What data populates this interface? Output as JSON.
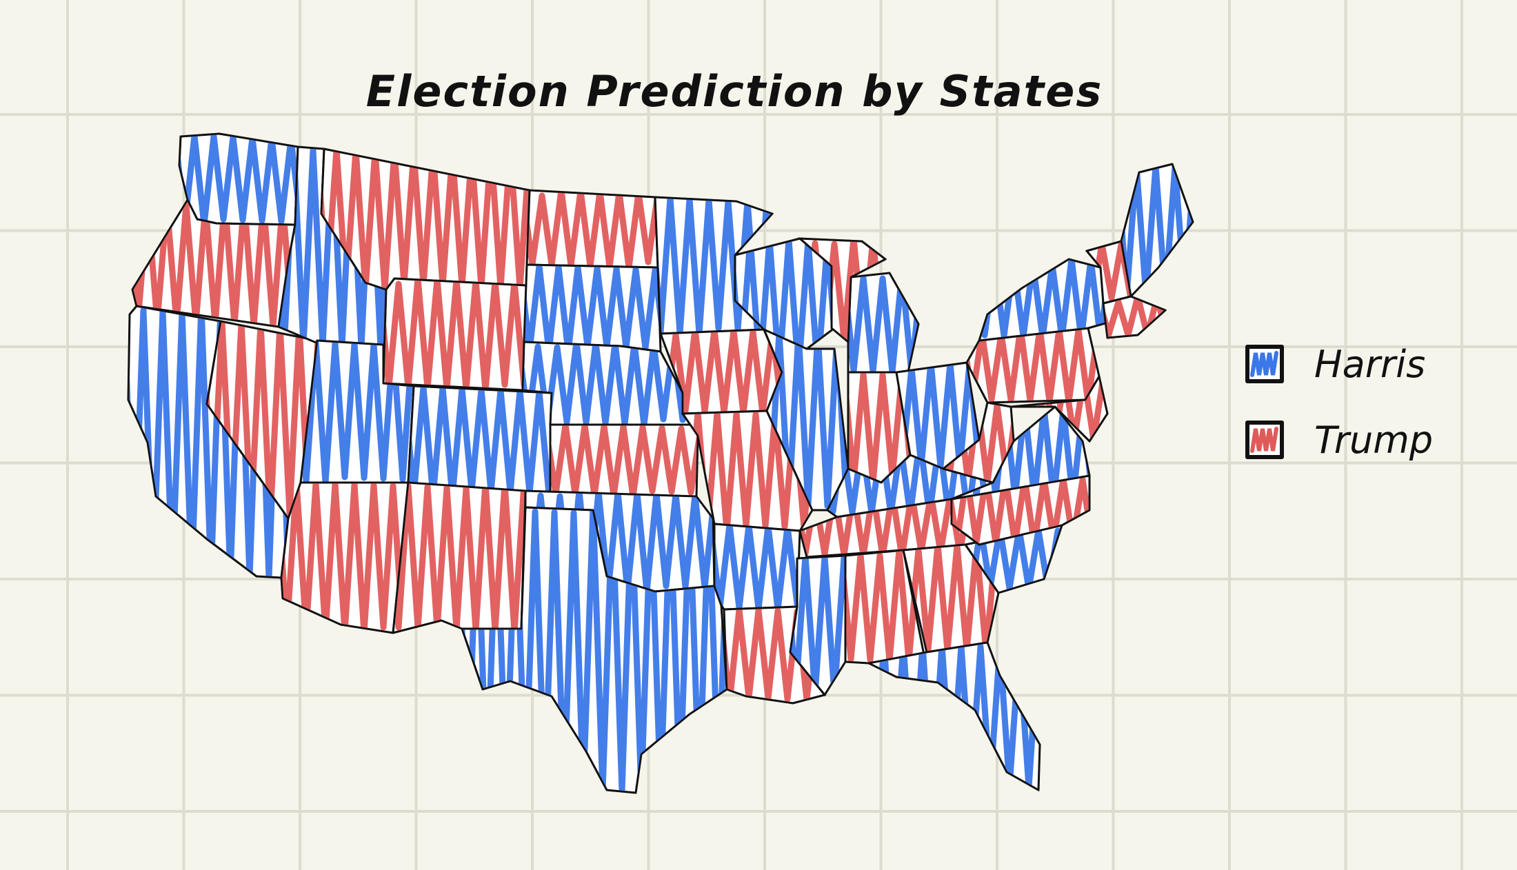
{
  "title": "Election Prediction by States",
  "legend": [
    {
      "label": "Harris",
      "color": "#3a77e8"
    },
    {
      "label": "Trump",
      "color": "#e05a5a"
    }
  ],
  "states": [
    {
      "name": "Washington",
      "winner": "Harris"
    },
    {
      "name": "Oregon",
      "winner": "Trump"
    },
    {
      "name": "California",
      "winner": "Harris"
    },
    {
      "name": "Nevada",
      "winner": "Trump"
    },
    {
      "name": "Idaho",
      "winner": "Harris"
    },
    {
      "name": "Montana",
      "winner": "Trump"
    },
    {
      "name": "Wyoming",
      "winner": "Trump"
    },
    {
      "name": "Utah",
      "winner": "Harris"
    },
    {
      "name": "Arizona",
      "winner": "Trump"
    },
    {
      "name": "Colorado",
      "winner": "Harris"
    },
    {
      "name": "New Mexico",
      "winner": "Trump"
    },
    {
      "name": "North Dakota",
      "winner": "Trump"
    },
    {
      "name": "South Dakota",
      "winner": "Harris"
    },
    {
      "name": "Nebraska",
      "winner": "Harris"
    },
    {
      "name": "Kansas",
      "winner": "Trump"
    },
    {
      "name": "Oklahoma",
      "winner": "Harris"
    },
    {
      "name": "Texas",
      "winner": "Harris"
    },
    {
      "name": "Minnesota",
      "winner": "Harris"
    },
    {
      "name": "Iowa",
      "winner": "Trump"
    },
    {
      "name": "Missouri",
      "winner": "Trump"
    },
    {
      "name": "Arkansas",
      "winner": "Harris"
    },
    {
      "name": "Louisiana",
      "winner": "Trump"
    },
    {
      "name": "Wisconsin",
      "winner": "Harris"
    },
    {
      "name": "Illinois",
      "winner": "Harris"
    },
    {
      "name": "Michigan",
      "winner": "Harris"
    },
    {
      "name": "Michigan Upper Peninsula",
      "winner": "Trump"
    },
    {
      "name": "Indiana",
      "winner": "Trump"
    },
    {
      "name": "Ohio",
      "winner": "Harris"
    },
    {
      "name": "Kentucky",
      "winner": "Harris"
    },
    {
      "name": "Tennessee",
      "winner": "Trump"
    },
    {
      "name": "Mississippi",
      "winner": "Harris"
    },
    {
      "name": "Alabama",
      "winner": "Trump"
    },
    {
      "name": "Georgia",
      "winner": "Trump"
    },
    {
      "name": "Florida",
      "winner": "Harris"
    },
    {
      "name": "South Carolina",
      "winner": "Harris"
    },
    {
      "name": "North Carolina",
      "winner": "Trump"
    },
    {
      "name": "Virginia",
      "winner": "Harris"
    },
    {
      "name": "West Virginia",
      "winner": "Trump"
    },
    {
      "name": "Pennsylvania",
      "winner": "Trump"
    },
    {
      "name": "New York",
      "winner": "Harris"
    },
    {
      "name": "Maine",
      "winner": "Harris"
    },
    {
      "name": "Vermont / New Hampshire",
      "winner": "Trump"
    },
    {
      "name": "Massachusetts / Connecticut",
      "winner": "Trump"
    },
    {
      "name": "New Jersey / Delaware / Maryland",
      "winner": "Trump"
    }
  ]
}
